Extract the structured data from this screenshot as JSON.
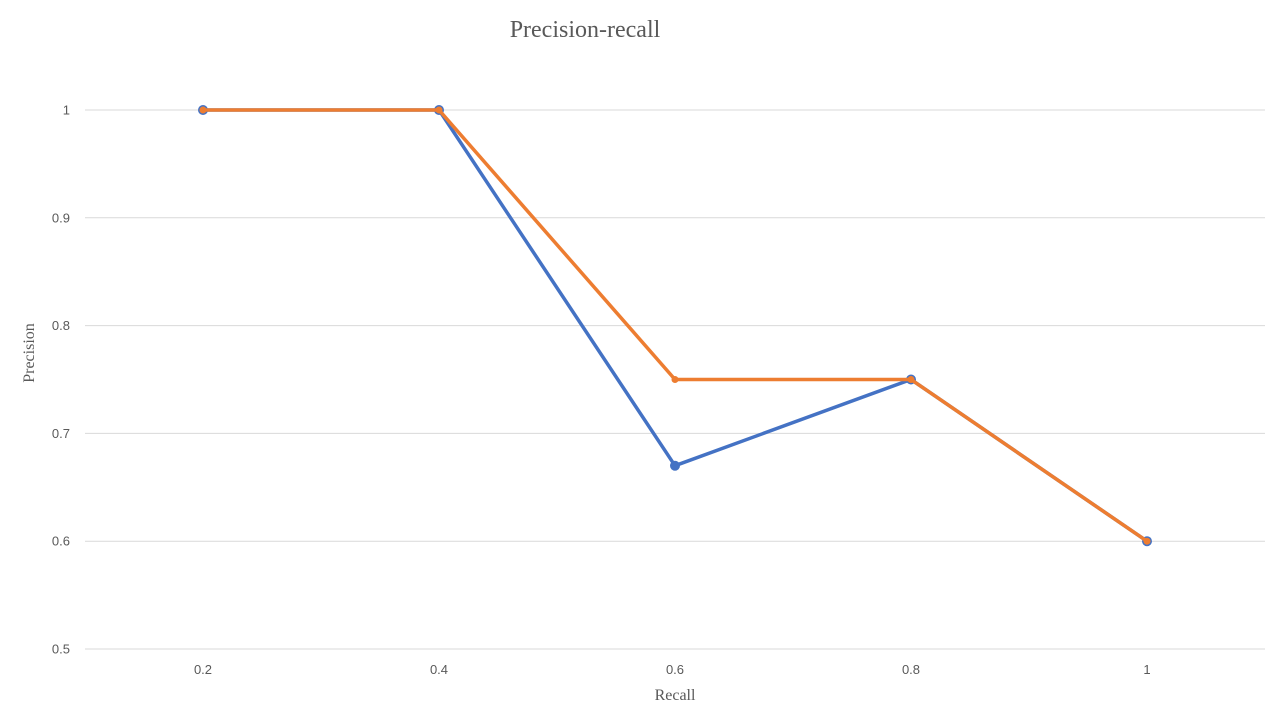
{
  "chart_data": {
    "type": "line",
    "title": "Precision-recall",
    "xlabel": "Recall",
    "ylabel": "Precision",
    "categories": [
      "0.2",
      "0.4",
      "0.6",
      "0.8",
      "1"
    ],
    "ylim": [
      0.5,
      1.0
    ],
    "yticks": [
      "0.5",
      "0.6",
      "0.7",
      "0.8",
      "0.9",
      "1"
    ],
    "grid": true,
    "legend": "none",
    "series": [
      {
        "values": [
          1.0,
          1.0,
          0.67,
          0.75,
          0.6
        ],
        "color": "#4472c4"
      },
      {
        "values": [
          1.0,
          1.0,
          0.75,
          0.75,
          0.6
        ],
        "color": "#ed7d31"
      }
    ]
  }
}
